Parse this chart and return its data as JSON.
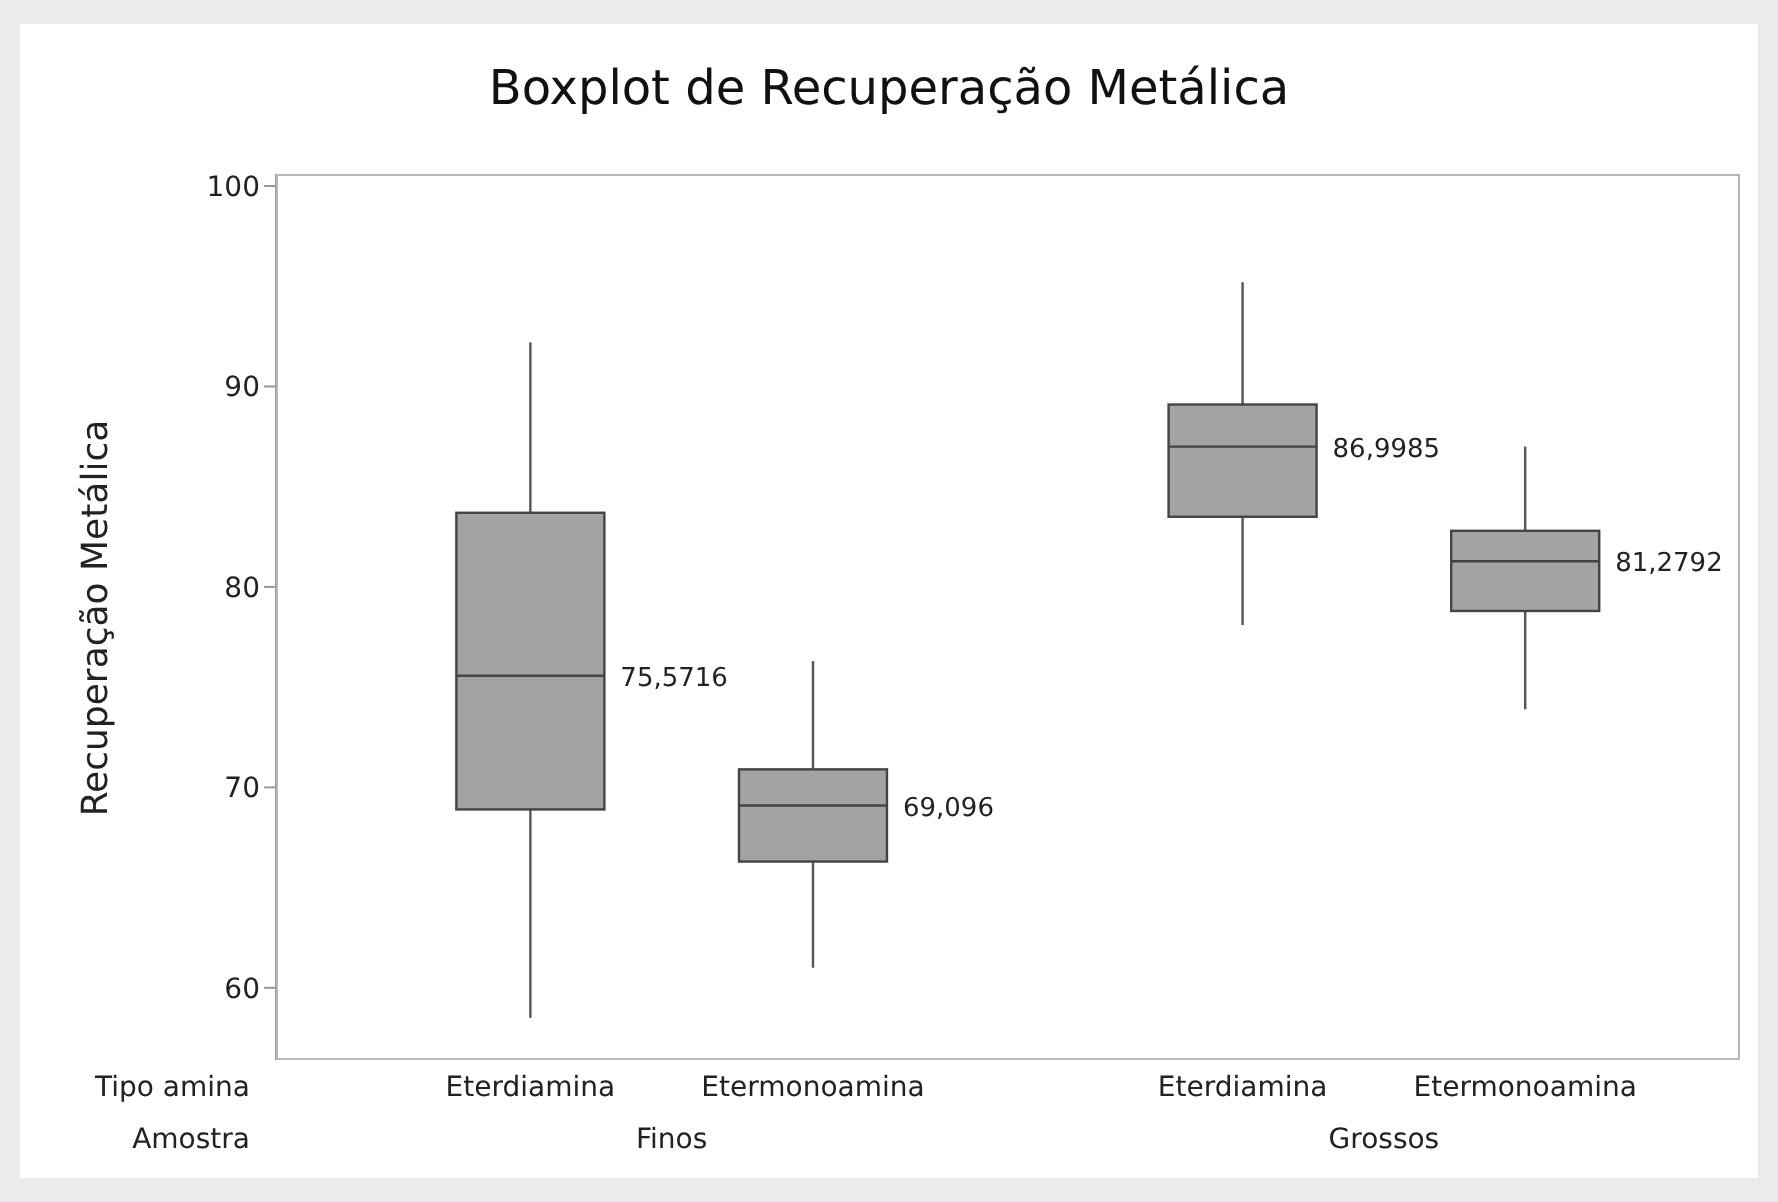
{
  "chart_data": {
    "type": "box",
    "title": "Boxplot de Recuperação Metálica",
    "ylabel": "Recuperação Metálica",
    "categories": [
      "Eterdiamina",
      "Etermonoamina",
      "Eterdiamina",
      "Etermonoamina"
    ],
    "ylim": [
      56.4,
      100.6
    ],
    "yticks": [
      60,
      70,
      80,
      90,
      100
    ],
    "grid": false,
    "legend": false,
    "series": [
      {
        "color": "#a3a3a3",
        "boxes": [
          {
            "low": 58.5,
            "q1": 68.9,
            "median": 75.5716,
            "q3": 83.7,
            "high": 92.2
          },
          {
            "low": 61.0,
            "q1": 66.3,
            "median": 69.096,
            "q3": 70.9,
            "high": 76.3
          },
          {
            "low": 78.1,
            "q1": 83.5,
            "median": 86.9985,
            "q3": 89.1,
            "high": 95.2
          },
          {
            "low": 73.9,
            "q1": 78.8,
            "median": 81.2792,
            "q3": 82.8,
            "high": 87.0
          }
        ]
      }
    ],
    "annotations": [
      "Tipo amina",
      "Amostra",
      "Finos",
      "Grossos",
      "75,5716",
      "69,096",
      "86,9985",
      "81,2792"
    ]
  }
}
